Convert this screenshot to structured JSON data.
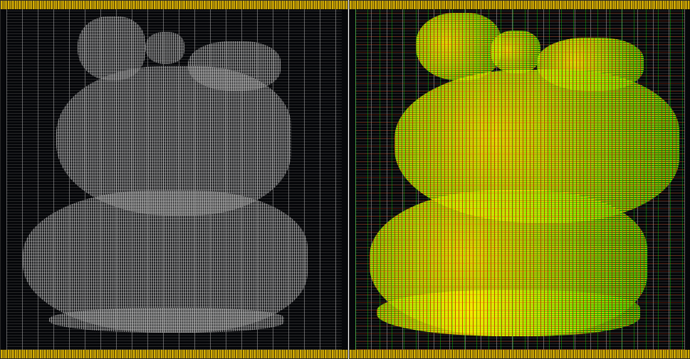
{
  "views": [
    {
      "key": "placement",
      "title": "",
      "ring_color": "#d8b000",
      "cell_color": "#8a8a8a"
    },
    {
      "key": "routing",
      "title": "",
      "ring_color": "#d8b000",
      "route_colors": [
        "#ffff00",
        "#00d000",
        "#c01010"
      ]
    }
  ]
}
